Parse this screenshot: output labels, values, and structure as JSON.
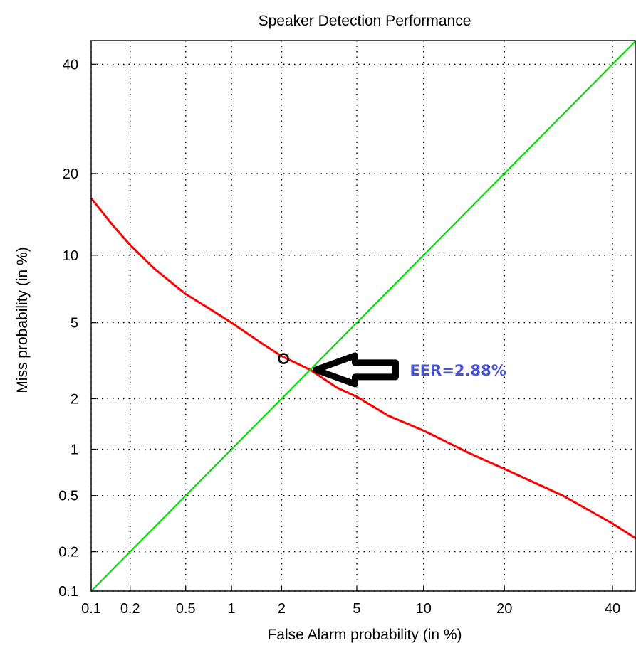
{
  "chart_data": {
    "type": "line",
    "title": "Speaker Detection Performance",
    "xlabel": "False Alarm probability (in %)",
    "ylabel": "Miss probability (in %)",
    "scale": "normal-deviate (DET)",
    "grid": true,
    "x_ticks": [
      0.1,
      0.2,
      0.5,
      1,
      2,
      5,
      10,
      20,
      40
    ],
    "x_tick_labels": [
      "0.1",
      "0.2",
      "0.5",
      "1",
      "2",
      "5",
      "10",
      "20",
      "40"
    ],
    "y_ticks": [
      0.1,
      0.2,
      0.5,
      1,
      2,
      5,
      10,
      20,
      40
    ],
    "y_tick_labels": [
      "0.1",
      "0.2",
      "0.5",
      "1",
      "2",
      "5",
      "10",
      "20",
      "40"
    ],
    "xlim": [
      0.1,
      45
    ],
    "ylim": [
      0.1,
      45
    ],
    "series": [
      {
        "color": "#ff0000",
        "x": [
          0.1,
          0.15,
          0.2,
          0.3,
          0.5,
          0.7,
          1,
          1.5,
          2,
          2.88,
          4,
          5,
          7,
          10,
          15,
          20,
          30,
          40,
          45
        ],
        "y": [
          16.5,
          13,
          11,
          8.8,
          6.8,
          5.9,
          5,
          4,
          3.4,
          2.88,
          2.3,
          2.05,
          1.6,
          1.3,
          0.95,
          0.75,
          0.5,
          0.32,
          0.25
        ]
      },
      {
        "color": "#00dd00",
        "x": [
          0.1,
          45
        ],
        "y": [
          0.1,
          45
        ]
      }
    ],
    "marker": {
      "x": 2.05,
      "y": 3.3,
      "shape": "circle"
    },
    "annotation": {
      "text": "EER=2.88%",
      "color": "#4a52d6",
      "arrow_to": {
        "x": 2.88,
        "y": 2.88
      }
    }
  }
}
